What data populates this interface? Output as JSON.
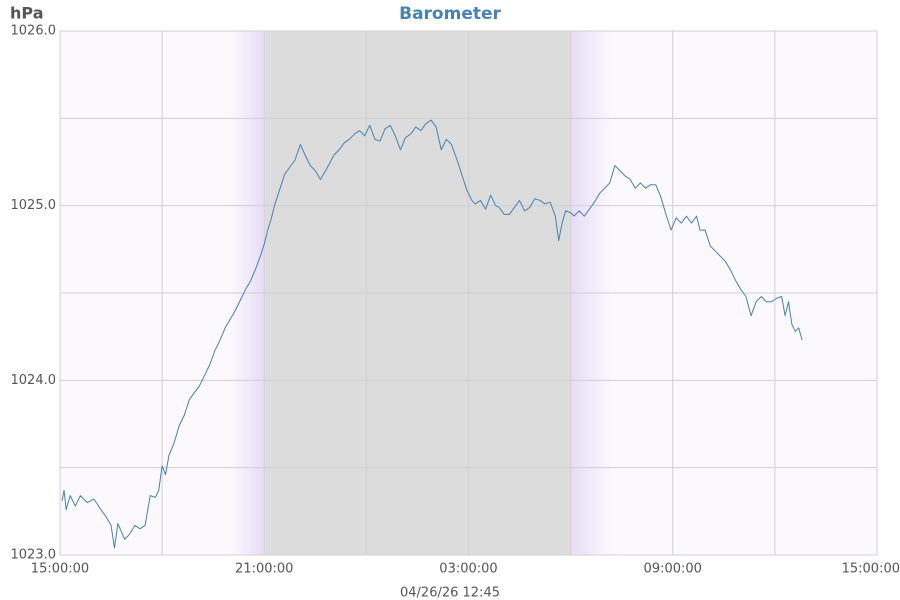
{
  "chart_data": {
    "type": "line",
    "title": "Barometer",
    "y_unit_label": "hPa",
    "footer": "04/26/26 12:45",
    "color": "#4682b4",
    "x": [
      0.06,
      0.12,
      0.18,
      0.3,
      0.45,
      0.6,
      0.8,
      1.0,
      1.2,
      1.35,
      1.5,
      1.6,
      1.7,
      1.9,
      2.05,
      2.2,
      2.35,
      2.5,
      2.65,
      2.8,
      2.9,
      3.0,
      3.1,
      3.2,
      3.35,
      3.5,
      3.65,
      3.8,
      3.95,
      4.1,
      4.25,
      4.4,
      4.55,
      4.7,
      4.85,
      5.0,
      5.15,
      5.3,
      5.45,
      5.6,
      5.75,
      5.9,
      6.0,
      6.1,
      6.2,
      6.3,
      6.45,
      6.6,
      6.75,
      6.9,
      7.06,
      7.2,
      7.35,
      7.5,
      7.65,
      7.8,
      7.94,
      8.05,
      8.2,
      8.35,
      8.5,
      8.65,
      8.8,
      8.95,
      9.1,
      9.25,
      9.4,
      9.55,
      9.7,
      9.85,
      10.0,
      10.15,
      10.3,
      10.45,
      10.6,
      10.75,
      10.9,
      11.05,
      11.2,
      11.35,
      11.5,
      11.65,
      11.8,
      11.95,
      12.1,
      12.2,
      12.35,
      12.5,
      12.65,
      12.8,
      12.9,
      13.05,
      13.2,
      13.35,
      13.5,
      13.65,
      13.8,
      13.95,
      14.1,
      14.25,
      14.4,
      14.55,
      14.65,
      14.75,
      14.85,
      15.0,
      15.1,
      15.25,
      15.4,
      15.55,
      15.7,
      15.85,
      16.0,
      16.15,
      16.3,
      16.45,
      16.6,
      16.75,
      16.9,
      17.05,
      17.2,
      17.35,
      17.5,
      17.65,
      17.8,
      17.95,
      18.1,
      18.25,
      18.4,
      18.55,
      18.7,
      18.8,
      18.95,
      19.1,
      19.25,
      19.4,
      19.55,
      19.7,
      19.85,
      20.0,
      20.15,
      20.3,
      20.45,
      20.6,
      20.75,
      20.9,
      21.05,
      21.2,
      21.3,
      21.4,
      21.5,
      21.6,
      21.7,
      21.8
    ],
    "values": [
      1023.31,
      1023.37,
      1023.26,
      1023.34,
      1023.28,
      1023.34,
      1023.3,
      1023.32,
      1023.26,
      1023.22,
      1023.17,
      1023.04,
      1023.18,
      1023.09,
      1023.12,
      1023.17,
      1023.15,
      1023.17,
      1023.34,
      1023.33,
      1023.37,
      1023.51,
      1023.46,
      1023.57,
      1023.64,
      1023.74,
      1023.8,
      1023.89,
      1023.93,
      1023.97,
      1024.03,
      1024.09,
      1024.17,
      1024.23,
      1024.3,
      1024.35,
      1024.4,
      1024.46,
      1024.52,
      1024.57,
      1024.64,
      1024.72,
      1024.78,
      1024.86,
      1024.92,
      1025.0,
      1025.09,
      1025.18,
      1025.22,
      1025.26,
      1025.35,
      1025.29,
      1025.23,
      1025.2,
      1025.15,
      1025.2,
      1025.25,
      1025.29,
      1025.32,
      1025.36,
      1025.38,
      1025.41,
      1025.43,
      1025.4,
      1025.46,
      1025.38,
      1025.37,
      1025.44,
      1025.46,
      1025.4,
      1025.32,
      1025.39,
      1025.41,
      1025.45,
      1025.43,
      1025.47,
      1025.49,
      1025.45,
      1025.32,
      1025.38,
      1025.35,
      1025.27,
      1025.18,
      1025.09,
      1025.03,
      1025.01,
      1025.03,
      1024.98,
      1025.06,
      1025.0,
      1024.99,
      1024.95,
      1024.95,
      1024.99,
      1025.03,
      1024.97,
      1024.99,
      1025.04,
      1025.03,
      1025.01,
      1025.02,
      1024.94,
      1024.8,
      1024.9,
      1024.97,
      1024.96,
      1024.94,
      1024.97,
      1024.94,
      1024.98,
      1025.02,
      1025.07,
      1025.1,
      1025.13,
      1025.23,
      1025.2,
      1025.17,
      1025.15,
      1025.1,
      1025.13,
      1025.1,
      1025.12,
      1025.12,
      1025.05,
      1024.95,
      1024.86,
      1024.93,
      1024.9,
      1024.94,
      1024.9,
      1024.94,
      1024.86,
      1024.86,
      1024.77,
      1024.74,
      1024.71,
      1024.68,
      1024.63,
      1024.57,
      1024.52,
      1024.48,
      1024.37,
      1024.45,
      1024.48,
      1024.45,
      1024.45,
      1024.47,
      1024.48,
      1024.37,
      1024.45,
      1024.32,
      1024.28,
      1024.3,
      1024.23
    ],
    "xlim": [
      0,
      24
    ],
    "xticks": [
      {
        "value": 0,
        "label": "15:00:00"
      },
      {
        "value": 6,
        "label": "21:00:00"
      },
      {
        "value": 12,
        "label": "03:00:00"
      },
      {
        "value": 18,
        "label": "09:00:00"
      },
      {
        "value": 24,
        "label": "15:00:00"
      }
    ],
    "minor_xticks": [
      3,
      9,
      15,
      21
    ],
    "ylim": [
      1023.0,
      1026.0
    ],
    "yticks": [
      {
        "value": 1023,
        "label": "1023.0"
      },
      {
        "value": 1024,
        "label": "1024.0"
      },
      {
        "value": 1025,
        "label": "1025.0"
      },
      {
        "value": 1026,
        "label": "1026.0"
      }
    ],
    "minor_yticks": [
      1023.5,
      1024.5,
      1025.5
    ],
    "dark_band": [
      6.03,
      14.97
    ],
    "twilight_band": [
      5.0,
      16.2
    ],
    "grid": true
  }
}
